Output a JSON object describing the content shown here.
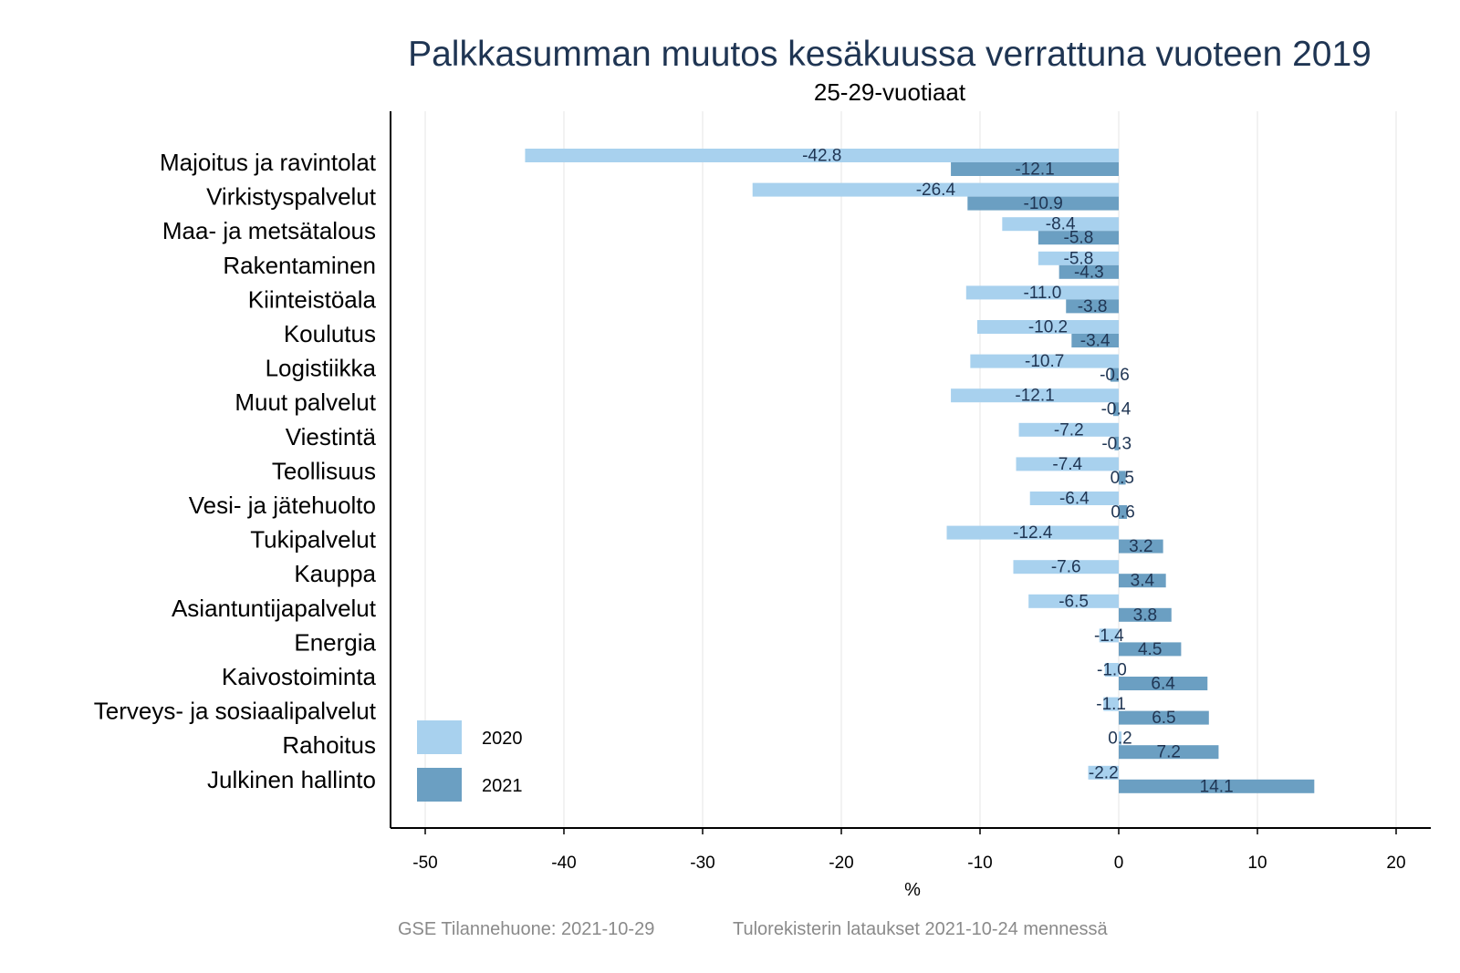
{
  "chart_data": {
    "type": "bar",
    "orientation": "horizontal",
    "title": "Palkkasumman muutos kesäkuussa verrattuna vuoteen 2019",
    "subtitle": "25-29-vuotiaat",
    "xlabel": "%",
    "ylabel": "",
    "xlim": [
      -52.5,
      22.5
    ],
    "xticks": [
      -50,
      -40,
      -30,
      -20,
      -10,
      0,
      10,
      20
    ],
    "grid": true,
    "legend_position": "bottom-left",
    "categories": [
      "Majoitus ja ravintolat",
      "Virkistyspalvelut",
      "Maa- ja metsätalous",
      "Rakentaminen",
      "Kiinteistöala",
      "Koulutus",
      "Logistiikka",
      "Muut palvelut",
      "Viestintä",
      "Teollisuus",
      "Vesi- ja jätehuolto",
      "Tukipalvelut",
      "Kauppa",
      "Asiantuntijapalvelut",
      "Energia",
      "Kaivostoiminta",
      "Terveys- ja sosiaalipalvelut",
      "Rahoitus",
      "Julkinen hallinto"
    ],
    "series": [
      {
        "name": "2020",
        "color": "#a8d1ee",
        "values": [
          -42.8,
          -26.4,
          -8.4,
          -5.8,
          -11.0,
          -10.2,
          -10.7,
          -12.1,
          -7.2,
          -7.4,
          -6.4,
          -12.4,
          -7.6,
          -6.5,
          -1.4,
          -1.0,
          -1.1,
          0.2,
          -2.2
        ],
        "labels": [
          "-42.8",
          "-26.4",
          "-8.4",
          "-5.8",
          "-11.0",
          "-10.2",
          "-10.7",
          "-12.1",
          "-7.2",
          "-7.4",
          "-6.4",
          "-12.4",
          "-7.6",
          "-6.5",
          "-1.4",
          "-1.0",
          "-1.1",
          "0.2",
          "-2.2"
        ]
      },
      {
        "name": "2021",
        "color": "#6b9fc2",
        "values": [
          -12.1,
          -10.9,
          -5.8,
          -4.3,
          -3.8,
          -3.4,
          -0.6,
          -0.4,
          -0.3,
          0.5,
          0.6,
          3.2,
          3.4,
          3.8,
          4.5,
          6.4,
          6.5,
          7.2,
          14.1
        ],
        "labels": [
          "-12.1",
          "-10.9",
          "-5.8",
          "-4.3",
          "-3.8",
          "-3.4",
          "-0.6",
          "-0.4",
          "-0.3",
          "0.5",
          "0.6",
          "3.2",
          "3.4",
          "3.8",
          "4.5",
          "6.4",
          "6.5",
          "7.2",
          "14.1"
        ]
      }
    ]
  },
  "footer": {
    "source": "GSE Tilannehuone: 2021-10-29",
    "note": "Tulorekisterin lataukset 2021-10-24 mennessä"
  }
}
